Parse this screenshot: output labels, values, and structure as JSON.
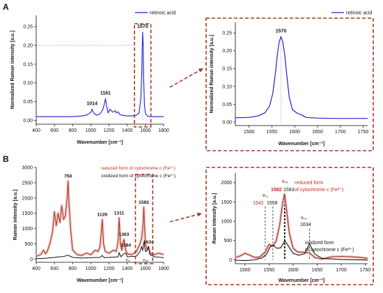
{
  "panels": {
    "A": "A",
    "B": "B"
  },
  "colors": {
    "blue": "#1f1fd0",
    "dark_red": "#a0301a",
    "black": "#111111",
    "highlight_label": "#d02020",
    "box_dashed": "#a83a20",
    "axis": "#000000"
  },
  "chart_data": [
    {
      "id": "A_left",
      "type": "line",
      "xlabel": "Wavenumber [cm⁻¹]",
      "ylabel": "Normalized Raman intensity [a.u.]",
      "xlim": [
        400,
        1800
      ],
      "ylim": [
        -0.01,
        0.28
      ],
      "xticks": [
        400,
        600,
        800,
        1000,
        1200,
        1400,
        1600,
        1800
      ],
      "yticks": [
        0.0,
        0.05,
        0.1,
        0.15,
        0.2,
        0.25
      ],
      "legend": "retinoic acid",
      "legend_position": "top-right",
      "series": [
        {
          "name": "retinoic acid",
          "color": "#1f1fd0",
          "x": [
            400,
            600,
            800,
            900,
            950,
            980,
            1000,
            1014,
            1030,
            1060,
            1100,
            1130,
            1150,
            1161,
            1172,
            1190,
            1210,
            1240,
            1270,
            1280,
            1300,
            1320,
            1350,
            1400,
            1450,
            1500,
            1530,
            1550,
            1560,
            1565,
            1570,
            1575,
            1580,
            1590,
            1600,
            1620,
            1650,
            1700,
            1800
          ],
          "y": [
            0.01,
            0.01,
            0.01,
            0.012,
            0.014,
            0.018,
            0.022,
            0.03,
            0.02,
            0.014,
            0.017,
            0.028,
            0.045,
            0.058,
            0.04,
            0.02,
            0.03,
            0.022,
            0.026,
            0.02,
            0.023,
            0.015,
            0.014,
            0.012,
            0.012,
            0.014,
            0.02,
            0.06,
            0.13,
            0.2,
            0.235,
            0.2,
            0.12,
            0.04,
            0.018,
            0.012,
            0.01,
            0.01,
            0.01
          ]
        }
      ],
      "annotations": [
        {
          "x": 1014,
          "y": 0.03,
          "label": "1014"
        },
        {
          "x": 1161,
          "y": 0.058,
          "label": "1161"
        },
        {
          "x": 1570,
          "y": 0.235,
          "label": "1570"
        }
      ],
      "zoom_box_x": [
        1480,
        1660
      ]
    },
    {
      "id": "A_right",
      "type": "line",
      "xlabel": "Wavenumber [cm⁻¹]",
      "ylabel": "Normalized Raman intensity [a.u.]",
      "xlim": [
        1470,
        1760
      ],
      "ylim": [
        -0.01,
        0.28
      ],
      "xticks": [
        1500,
        1550,
        1600,
        1650,
        1700,
        1750
      ],
      "yticks": [
        0.0,
        0.05,
        0.1,
        0.15,
        0.2,
        0.25
      ],
      "legend": "retinoic acid",
      "legend_position": "top-right",
      "series": [
        {
          "name": "retinoic acid",
          "color": "#1f1fd0",
          "x": [
            1470,
            1500,
            1520,
            1535,
            1545,
            1552,
            1558,
            1562,
            1566,
            1570,
            1574,
            1578,
            1582,
            1588,
            1595,
            1605,
            1615,
            1625,
            1650,
            1700,
            1760
          ],
          "y": [
            0.012,
            0.013,
            0.017,
            0.026,
            0.045,
            0.08,
            0.14,
            0.19,
            0.225,
            0.24,
            0.225,
            0.19,
            0.14,
            0.07,
            0.035,
            0.025,
            0.02,
            0.013,
            0.011,
            0.01,
            0.01
          ]
        }
      ],
      "annotations": [
        {
          "x": 1570,
          "y": 0.24,
          "label": "1570"
        }
      ]
    },
    {
      "id": "B_left",
      "type": "line",
      "xlabel": "Wavenumber [cm⁻¹]",
      "ylabel": "Raman intensity [a.u.]",
      "xlim": [
        400,
        1800
      ],
      "ylim": [
        -100,
        3000
      ],
      "xticks": [
        400,
        600,
        800,
        1000,
        1200,
        1400,
        1600,
        1800
      ],
      "yticks": [
        0,
        500,
        1000,
        1500,
        2000,
        2500,
        3000
      ],
      "legend_entries": [
        "reduced form of cytochrome c (Fe²⁺)",
        "oxidized form of cytochrome c (Fe³⁺)"
      ],
      "legend_position": "top-center",
      "series": [
        {
          "name": "reduced form of cytochrome c (Fe²⁺)",
          "color": "#a0301a",
          "x": [
            400,
            450,
            480,
            500,
            520,
            550,
            580,
            600,
            620,
            640,
            660,
            680,
            700,
            720,
            740,
            750,
            760,
            780,
            800,
            850,
            900,
            950,
            1000,
            1050,
            1080,
            1100,
            1110,
            1126,
            1140,
            1160,
            1200,
            1250,
            1280,
            1300,
            1311,
            1325,
            1340,
            1363,
            1384,
            1400,
            1450,
            1500,
            1540,
            1560,
            1575,
            1582,
            1590,
            1600,
            1620,
            1634,
            1650,
            1700,
            1750,
            1800
          ],
          "y": [
            100,
            150,
            300,
            180,
            250,
            500,
            900,
            1550,
            1100,
            1500,
            1200,
            1750,
            1300,
            1400,
            2000,
            2550,
            1800,
            900,
            300,
            150,
            120,
            200,
            150,
            300,
            250,
            400,
            700,
            1300,
            500,
            250,
            200,
            300,
            250,
            600,
            1350,
            500,
            300,
            650,
            300,
            180,
            150,
            250,
            500,
            700,
            1200,
            1700,
            1100,
            500,
            300,
            400,
            200,
            150,
            200,
            150
          ]
        },
        {
          "name": "oxidized form of cytochrome c (Fe³⁺)",
          "color": "#111111",
          "x": [
            400,
            500,
            600,
            650,
            700,
            750,
            800,
            900,
            1000,
            1100,
            1126,
            1150,
            1200,
            1300,
            1311,
            1330,
            1363,
            1384,
            1400,
            1500,
            1540,
            1558,
            1570,
            1583,
            1600,
            1620,
            1634,
            1650,
            1700,
            1800
          ],
          "y": [
            20,
            30,
            60,
            80,
            90,
            130,
            60,
            40,
            50,
            60,
            120,
            50,
            60,
            80,
            220,
            80,
            180,
            200,
            80,
            100,
            250,
            420,
            280,
            560,
            250,
            300,
            420,
            150,
            80,
            50
          ]
        }
      ],
      "annotations": [
        {
          "x": 750,
          "y": 2550,
          "label": "750"
        },
        {
          "x": 1126,
          "y": 1300,
          "label": "1126"
        },
        {
          "x": 1311,
          "y": 1350,
          "label": "1311"
        },
        {
          "x": 1363,
          "y": 650,
          "label": "1363"
        },
        {
          "x": 1384,
          "y": 300,
          "label": "1384"
        },
        {
          "x": 1582,
          "y": 1700,
          "label": "1582"
        },
        {
          "x": 1634,
          "y": 400,
          "label": "1634"
        }
      ],
      "small_labels": [
        {
          "x": 1405,
          "y": -20,
          "label": "ν₄"
        },
        {
          "x": 1600,
          "y": -20,
          "label": "ν₁₉"
        }
      ],
      "zoom_box_x": [
        1490,
        1680
      ]
    },
    {
      "id": "B_right",
      "type": "line",
      "xlabel": "Wavenumber [cm⁻¹]",
      "ylabel": "Raman intensity [a.u.]",
      "xlim": [
        1480,
        1755
      ],
      "ylim": [
        -100,
        2250
      ],
      "xticks": [
        1500,
        1550,
        1600,
        1650,
        1700,
        1750
      ],
      "yticks": [
        0,
        500,
        1000,
        1500,
        2000
      ],
      "series": [
        {
          "name": "reduced form of cytochrome c (Fe²⁺)",
          "color": "#a0301a",
          "x": [
            1480,
            1490,
            1500,
            1510,
            1520,
            1530,
            1542,
            1550,
            1558,
            1565,
            1572,
            1578,
            1582,
            1586,
            1592,
            1600,
            1610,
            1620,
            1634,
            1645,
            1660,
            1680,
            1700,
            1720,
            1740,
            1755
          ],
          "y": [
            60,
            100,
            170,
            120,
            60,
            70,
            200,
            400,
            350,
            500,
            900,
            1450,
            1700,
            1350,
            700,
            300,
            200,
            200,
            180,
            60,
            20,
            80,
            90,
            80,
            60,
            40
          ]
        },
        {
          "name": "oxidized form of cytochrome c (Fe³⁺)",
          "color": "#111111",
          "x": [
            1480,
            1500,
            1520,
            1535,
            1545,
            1552,
            1558,
            1566,
            1574,
            1583,
            1592,
            1600,
            1612,
            1624,
            1634,
            1645,
            1660,
            1700,
            1755
          ],
          "y": [
            -10,
            -20,
            0,
            50,
            150,
            330,
            390,
            300,
            310,
            500,
            320,
            170,
            120,
            160,
            420,
            150,
            40,
            10,
            -5
          ]
        }
      ],
      "peak_lines": [
        1542,
        1558,
        1582,
        1583,
        1634
      ],
      "labels": {
        "v11": "ν₁₁",
        "v19": "ν₁₉",
        "v10": "ν₁₀",
        "p1542": "1542",
        "p1558": "1558",
        "p1582": "1582",
        "p1583": "1583",
        "p1634": "1634",
        "reduced_1": "reduced form",
        "reduced_2": "of cytochrome c (Fe²⁺)",
        "oxidized_1": "oxidized form",
        "oxidized_2": "of cytochrome c (Fe³⁺)"
      }
    }
  ]
}
